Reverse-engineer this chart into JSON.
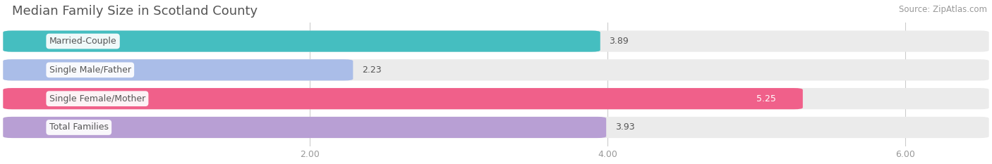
{
  "title": "Median Family Size in Scotland County",
  "source": "Source: ZipAtlas.com",
  "categories": [
    "Married-Couple",
    "Single Male/Father",
    "Single Female/Mother",
    "Total Families"
  ],
  "values": [
    3.89,
    2.23,
    5.25,
    3.93
  ],
  "bar_colors": [
    "#45bec0",
    "#aabde8",
    "#f0608a",
    "#b89fd4"
  ],
  "bar_bg_color": "#ebebeb",
  "value_labels": [
    "3.89",
    "2.23",
    "5.25",
    "3.93"
  ],
  "value_inside": [
    false,
    false,
    true,
    false
  ],
  "xlim_max": 6.5,
  "xticks": [
    2.0,
    4.0,
    6.0
  ],
  "xtick_labels": [
    "2.00",
    "4.00",
    "6.00"
  ],
  "figsize": [
    14.06,
    2.33
  ],
  "dpi": 100,
  "bar_height": 0.62,
  "background_color": "#ffffff",
  "title_fontsize": 13,
  "source_fontsize": 8.5,
  "label_fontsize": 9,
  "tick_fontsize": 9,
  "value_fontsize": 9,
  "grid_color": "#cccccc",
  "label_text_color": "#555555",
  "tick_color": "#999999",
  "value_outside_color": "#555555",
  "value_inside_color": "#ffffff",
  "title_color": "#555555",
  "source_color": "#999999"
}
